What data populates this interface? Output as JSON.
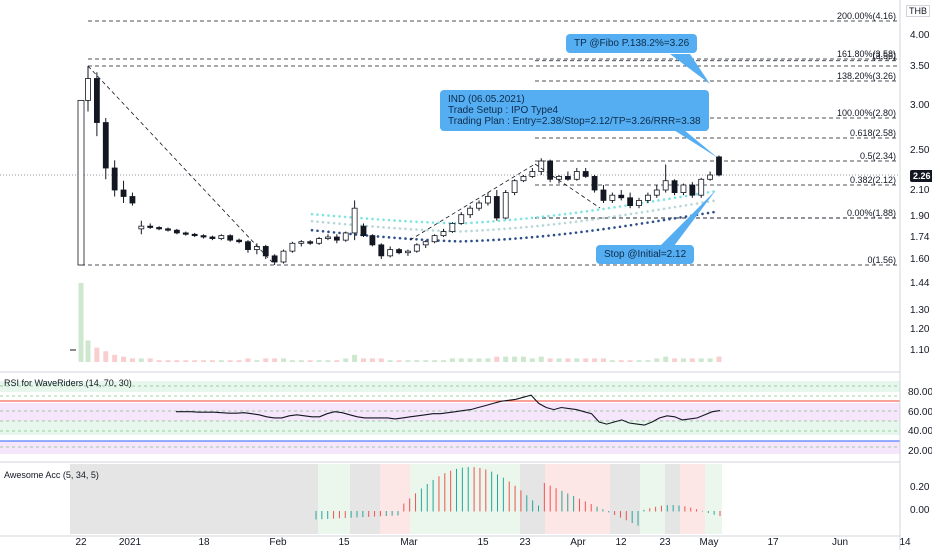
{
  "currency_label": "THB",
  "last_price_label": "2.26",
  "price_axis_ticks": [
    "4.00",
    "3.50",
    "3.00",
    "2.50",
    "2.10",
    "1.90",
    "1.74",
    "1.60"
  ],
  "volume_axis_ticks": [
    "1.44",
    "1.30",
    "1.20",
    "1.10"
  ],
  "rsi_axis_ticks": [
    "80.00",
    "60.00",
    "40.00",
    "20.00"
  ],
  "ao_axis_ticks": [
    "0.20",
    "0.00"
  ],
  "time_axis_labels": [
    "22",
    "2021",
    "18",
    "Feb",
    "15",
    "Mar",
    "15",
    "23",
    "Apr",
    "12",
    "23",
    "May",
    "17",
    "Jun",
    "14"
  ],
  "fib_levels": [
    {
      "label": "200.00%(4.16)",
      "price": 4.16
    },
    {
      "label": "161.80%(3.58)",
      "price": 3.58
    },
    {
      "label": "(3.56)",
      "price": 3.56
    },
    {
      "label": "138.20%(3.26)",
      "price": 3.26
    },
    {
      "label": "100.00%(2.80)",
      "price": 2.8
    },
    {
      "label": "0.618(2.58)",
      "price": 2.58
    },
    {
      "label": "0.5(2.34)",
      "price": 2.34
    },
    {
      "label": "0.382(2.12)",
      "price": 2.12
    },
    {
      "label": "0.00%(1.88)",
      "price": 1.88
    },
    {
      "label": "0(1.56)",
      "price": 1.56
    }
  ],
  "callouts": {
    "tp": "TP @Fibo P.138.2%=3.26",
    "plan": "IND (06.05.2021)\nTrade Setup : IPO Type4\nTrading Plan : Entry=2.38/Stop=2.12/TP=3.26/RRR=3.38",
    "stop": "Stop @Initial=2.12"
  },
  "indicators": {
    "rsi_title": "RSI for WaveRiders (14, 70, 30)",
    "ao_title": "Awesome Acc (5, 34, 5)"
  },
  "colors": {
    "up_candle": "#ffffff",
    "down_candle": "#131722",
    "callout": "#55aef2",
    "rsi_line": "#131722",
    "rsi_red": "#f44336",
    "rsi_blue": "#2962ff",
    "ao_green": "#26a69a",
    "ao_red": "#ef5350"
  },
  "chart_data": {
    "type": "candlestick",
    "ticker": "IND",
    "candles": [
      [
        1.56,
        3.05,
        1.56,
        3.05
      ],
      [
        3.05,
        3.5,
        2.9,
        3.3
      ],
      [
        3.3,
        3.4,
        2.6,
        2.75
      ],
      [
        2.75,
        2.8,
        2.2,
        2.3
      ],
      [
        2.3,
        2.35,
        2.05,
        2.1
      ],
      [
        2.1,
        2.18,
        2.0,
        2.05
      ],
      [
        2.05,
        2.08,
        1.98,
        2.0
      ],
      [
        1.8,
        1.86,
        1.76,
        1.82
      ],
      [
        1.82,
        1.84,
        1.8,
        1.81
      ],
      [
        1.81,
        1.82,
        1.79,
        1.8
      ],
      [
        1.8,
        1.81,
        1.78,
        1.79
      ],
      [
        1.79,
        1.8,
        1.76,
        1.77
      ],
      [
        1.77,
        1.78,
        1.75,
        1.76
      ],
      [
        1.76,
        1.77,
        1.74,
        1.75
      ],
      [
        1.75,
        1.76,
        1.73,
        1.74
      ],
      [
        1.74,
        1.75,
        1.72,
        1.73
      ],
      [
        1.73,
        1.76,
        1.72,
        1.75
      ],
      [
        1.75,
        1.76,
        1.71,
        1.72
      ],
      [
        1.72,
        1.73,
        1.7,
        1.71
      ],
      [
        1.71,
        1.72,
        1.64,
        1.66
      ],
      [
        1.66,
        1.7,
        1.63,
        1.68
      ],
      [
        1.68,
        1.69,
        1.6,
        1.62
      ],
      [
        1.62,
        1.63,
        1.56,
        1.58
      ],
      [
        1.58,
        1.66,
        1.57,
        1.65
      ],
      [
        1.65,
        1.71,
        1.64,
        1.7
      ],
      [
        1.7,
        1.72,
        1.68,
        1.71
      ],
      [
        1.71,
        1.72,
        1.69,
        1.7
      ],
      [
        1.7,
        1.74,
        1.69,
        1.73
      ],
      [
        1.73,
        1.76,
        1.72,
        1.74
      ],
      [
        1.74,
        1.76,
        1.7,
        1.72
      ],
      [
        1.72,
        1.78,
        1.71,
        1.77
      ],
      [
        1.77,
        2.02,
        1.72,
        1.96
      ],
      [
        1.82,
        1.84,
        1.74,
        1.75
      ],
      [
        1.75,
        1.76,
        1.68,
        1.69
      ],
      [
        1.69,
        1.7,
        1.6,
        1.62
      ],
      [
        1.62,
        1.68,
        1.61,
        1.66
      ],
      [
        1.66,
        1.67,
        1.63,
        1.64
      ],
      [
        1.64,
        1.66,
        1.62,
        1.65
      ],
      [
        1.65,
        1.7,
        1.64,
        1.69
      ],
      [
        1.69,
        1.72,
        1.67,
        1.71
      ],
      [
        1.71,
        1.76,
        1.7,
        1.75
      ],
      [
        1.75,
        1.8,
        1.74,
        1.78
      ],
      [
        1.78,
        1.85,
        1.77,
        1.84
      ],
      [
        1.84,
        1.93,
        1.83,
        1.91
      ],
      [
        1.91,
        1.98,
        1.88,
        1.96
      ],
      [
        1.96,
        2.02,
        1.94,
        2.0
      ],
      [
        2.0,
        2.08,
        1.98,
        2.05
      ],
      [
        2.05,
        2.1,
        1.86,
        1.88
      ],
      [
        1.88,
        2.1,
        1.87,
        2.08
      ],
      [
        2.08,
        2.2,
        2.06,
        2.18
      ],
      [
        2.18,
        2.26,
        2.16,
        2.24
      ],
      [
        2.24,
        2.3,
        2.22,
        2.28
      ],
      [
        2.28,
        2.38,
        2.26,
        2.34
      ],
      [
        2.34,
        2.36,
        2.16,
        2.2
      ],
      [
        2.2,
        2.26,
        2.14,
        2.24
      ],
      [
        2.24,
        2.28,
        2.18,
        2.2
      ],
      [
        2.2,
        2.3,
        2.18,
        2.28
      ],
      [
        2.28,
        2.3,
        2.22,
        2.24
      ],
      [
        2.24,
        2.26,
        2.08,
        2.1
      ],
      [
        2.1,
        2.12,
        2.0,
        2.02
      ],
      [
        2.02,
        2.08,
        2.0,
        2.06
      ],
      [
        2.06,
        2.1,
        2.02,
        2.04
      ],
      [
        2.04,
        2.08,
        1.96,
        1.98
      ],
      [
        1.98,
        2.04,
        1.96,
        2.02
      ],
      [
        2.02,
        2.08,
        2.0,
        2.06
      ],
      [
        2.06,
        2.12,
        2.04,
        2.1
      ],
      [
        2.1,
        2.32,
        2.08,
        2.18
      ],
      [
        2.18,
        2.2,
        2.06,
        2.08
      ],
      [
        2.08,
        2.14,
        2.06,
        2.12
      ],
      [
        2.12,
        2.16,
        2.04,
        2.06
      ],
      [
        2.06,
        2.22,
        2.04,
        2.2
      ],
      [
        2.2,
        2.28,
        2.18,
        2.26
      ],
      [
        2.4,
        2.42,
        2.24,
        2.26
      ]
    ],
    "volume": [
      1.44,
      1.12,
      1.08,
      1.06,
      1.04,
      1.03,
      1.02,
      1.02,
      1.02,
      1.01,
      1.01,
      1.01,
      1.01,
      1.01,
      1.01,
      1.01,
      1.01,
      1.01,
      1.01,
      1.02,
      1.01,
      1.02,
      1.02,
      1.02,
      1.01,
      1.01,
      1.01,
      1.01,
      1.01,
      1.01,
      1.02,
      1.04,
      1.02,
      1.02,
      1.02,
      1.01,
      1.01,
      1.01,
      1.01,
      1.01,
      1.01,
      1.01,
      1.02,
      1.02,
      1.02,
      1.02,
      1.02,
      1.03,
      1.03,
      1.03,
      1.03,
      1.02,
      1.03,
      1.02,
      1.02,
      1.02,
      1.02,
      1.02,
      1.02,
      1.02,
      1.01,
      1.01,
      1.01,
      1.01,
      1.01,
      1.02,
      1.03,
      1.02,
      1.02,
      1.02,
      1.02,
      1.02,
      1.03
    ],
    "rsi": [
      60,
      60,
      60,
      59.5,
      59.5,
      59.5,
      59,
      58.5,
      58.5,
      59,
      58,
      57,
      55,
      54,
      54,
      56,
      57,
      56,
      55,
      55,
      58,
      60,
      59,
      57,
      55,
      54,
      54,
      54,
      54,
      53,
      54,
      55,
      56,
      57,
      58,
      58,
      59,
      60,
      61,
      62,
      64,
      66,
      68,
      70,
      71,
      72,
      74,
      76,
      68,
      64,
      62,
      64,
      63,
      62,
      60,
      58,
      50,
      48,
      50,
      52,
      49,
      48,
      47,
      50,
      54,
      56,
      55,
      52,
      53,
      54,
      57,
      60,
      61
    ]
  }
}
